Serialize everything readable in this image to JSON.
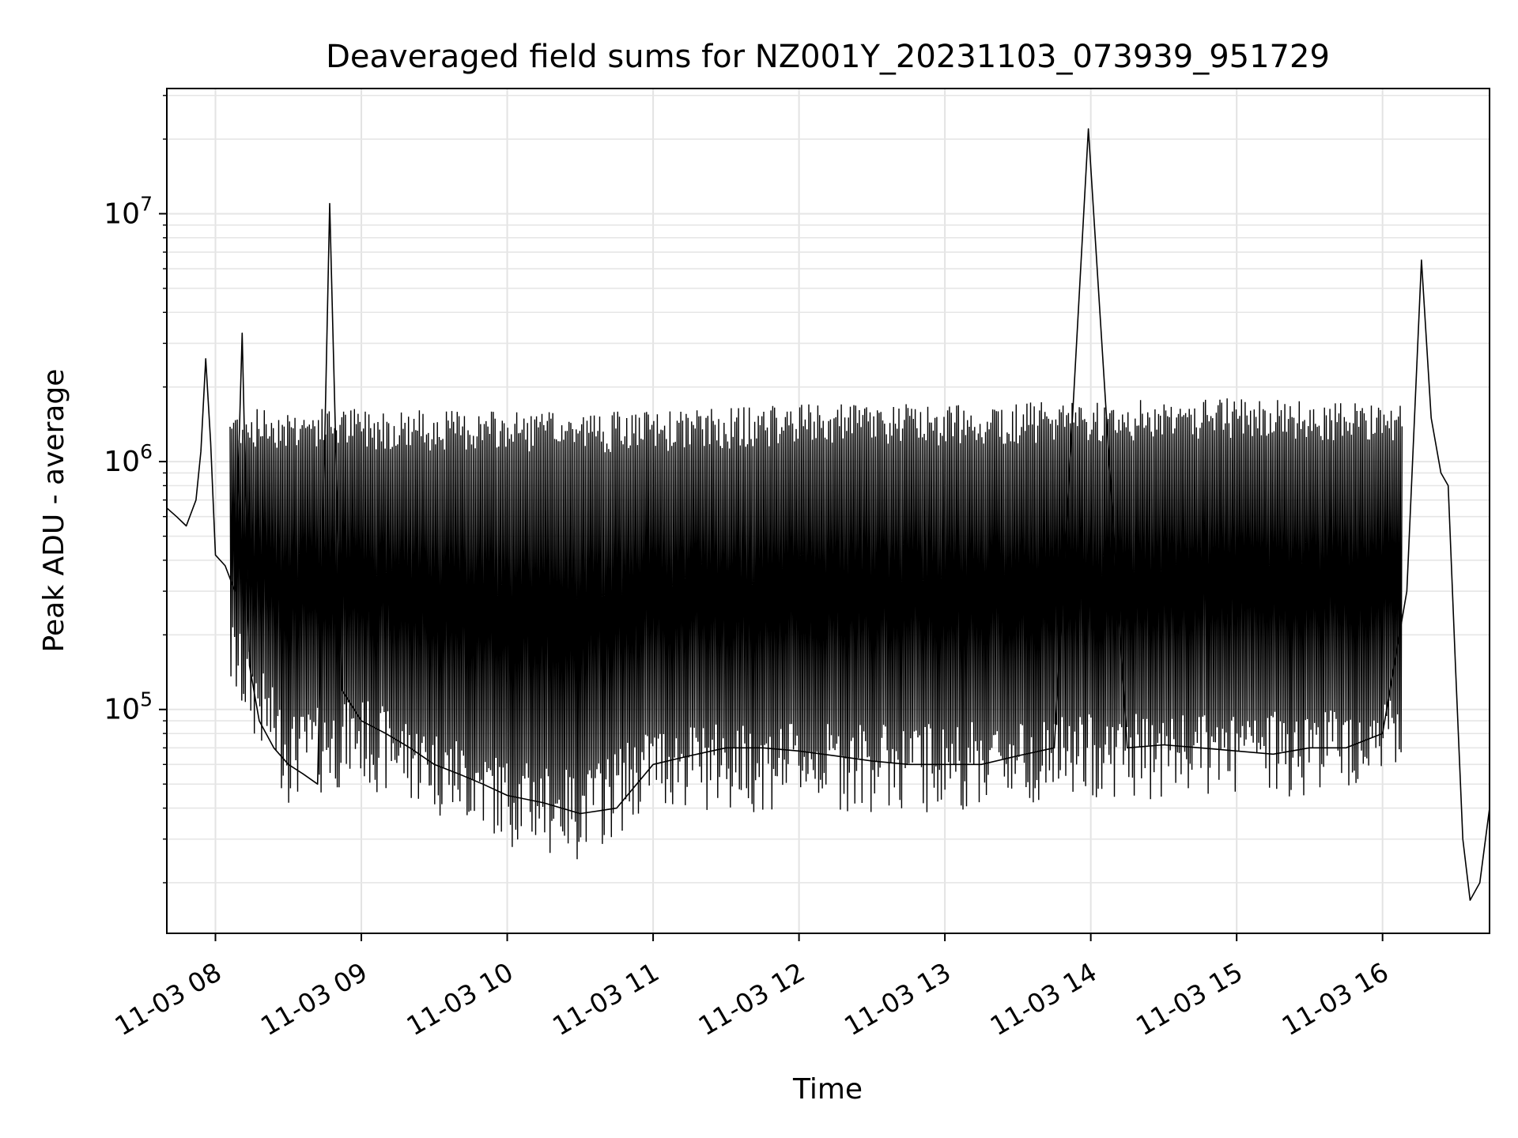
{
  "chart_data": {
    "type": "line",
    "title": "Deaveraged field sums for NZ001Y_20231103_073939_951729",
    "xlabel": "Time",
    "ylabel": "Peak ADU - average",
    "yscale": "log",
    "grid": true,
    "legend": "none",
    "xlim": [
      "2023-11-03 07:40",
      "2023-11-03 16:44"
    ],
    "ylim": [
      12500,
      32000000
    ],
    "x_ticks": [
      {
        "value": "2023-11-03 08:00",
        "label": "11-03 08"
      },
      {
        "value": "2023-11-03 09:00",
        "label": "11-03 09"
      },
      {
        "value": "2023-11-03 10:00",
        "label": "11-03 10"
      },
      {
        "value": "2023-11-03 11:00",
        "label": "11-03 11"
      },
      {
        "value": "2023-11-03 12:00",
        "label": "11-03 12"
      },
      {
        "value": "2023-11-03 13:00",
        "label": "11-03 13"
      },
      {
        "value": "2023-11-03 14:00",
        "label": "11-03 14"
      },
      {
        "value": "2023-11-03 15:00",
        "label": "11-03 15"
      },
      {
        "value": "2023-11-03 16:00",
        "label": "11-03 16"
      }
    ],
    "y_ticks": [
      {
        "value": 100000,
        "base": "10",
        "exp": "5"
      },
      {
        "value": 1000000,
        "base": "10",
        "exp": "6"
      },
      {
        "value": 10000000,
        "base": "10",
        "exp": "7"
      }
    ],
    "series": [
      {
        "color": "#000000",
        "x": [
          "2023-11-03 07:40",
          "2023-11-03 07:44",
          "2023-11-03 07:48",
          "2023-11-03 07:52",
          "2023-11-03 07:54",
          "2023-11-03 07:56",
          "2023-11-03 07:58",
          "2023-11-03 08:00",
          "2023-11-03 08:04",
          "2023-11-03 08:08",
          "2023-11-03 08:11",
          "2023-11-03 08:14",
          "2023-11-03 08:18",
          "2023-11-03 08:24",
          "2023-11-03 08:30",
          "2023-11-03 08:36",
          "2023-11-03 08:42",
          "2023-11-03 08:47",
          "2023-11-03 08:52",
          "2023-11-03 09:00",
          "2023-11-03 09:10",
          "2023-11-03 09:20",
          "2023-11-03 09:30",
          "2023-11-03 09:40",
          "2023-11-03 09:50",
          "2023-11-03 10:00",
          "2023-11-03 10:15",
          "2023-11-03 10:30",
          "2023-11-03 10:45",
          "2023-11-03 11:00",
          "2023-11-03 11:15",
          "2023-11-03 11:30",
          "2023-11-03 11:45",
          "2023-11-03 12:00",
          "2023-11-03 12:15",
          "2023-11-03 12:30",
          "2023-11-03 12:45",
          "2023-11-03 13:00",
          "2023-11-03 13:15",
          "2023-11-03 13:30",
          "2023-11-03 13:45",
          "2023-11-03 13:59",
          "2023-11-03 14:15",
          "2023-11-03 14:30",
          "2023-11-03 14:45",
          "2023-11-03 15:00",
          "2023-11-03 15:15",
          "2023-11-03 15:30",
          "2023-11-03 15:45",
          "2023-11-03 16:00",
          "2023-11-03 16:10",
          "2023-11-03 16:16",
          "2023-11-03 16:20",
          "2023-11-03 16:24",
          "2023-11-03 16:27",
          "2023-11-03 16:30",
          "2023-11-03 16:33",
          "2023-11-03 16:36",
          "2023-11-03 16:40",
          "2023-11-03 16:44"
        ],
        "y": [
          650000,
          600000,
          550000,
          700000,
          1100000,
          2600000,
          1200000,
          420000,
          380000,
          300000,
          3300000,
          150000,
          90000,
          70000,
          60000,
          55000,
          50000,
          11000000,
          120000,
          90000,
          80000,
          70000,
          60000,
          55000,
          50000,
          45000,
          42000,
          38000,
          40000,
          60000,
          65000,
          70000,
          70000,
          68000,
          65000,
          62000,
          60000,
          60000,
          60000,
          65000,
          70000,
          22000000,
          70000,
          72000,
          70000,
          68000,
          66000,
          70000,
          70000,
          80000,
          300000,
          6500000,
          1500000,
          900000,
          800000,
          150000,
          30000,
          17000,
          20000,
          40000
        ]
      },
      {
        "name_hint": "",
        "x_start": "2023-11-03 08:06",
        "x_end": "2023-11-03 16:08",
        "upper_envelope": [
          [
            "2023-11-03 08:06",
            1500000
          ],
          [
            "2023-11-03 09:00",
            1500000
          ],
          [
            "2023-11-03 10:00",
            1450000
          ],
          [
            "2023-11-03 11:00",
            1450000
          ],
          [
            "2023-11-03 12:00",
            1550000
          ],
          [
            "2023-11-03 13:00",
            1550000
          ],
          [
            "2023-11-03 14:00",
            1600000
          ],
          [
            "2023-11-03 15:00",
            1650000
          ],
          [
            "2023-11-03 16:08",
            1600000
          ]
        ],
        "lower_envelope": [
          [
            "2023-11-03 08:06",
            150000
          ],
          [
            "2023-11-03 08:30",
            60000
          ],
          [
            "2023-11-03 09:00",
            70000
          ],
          [
            "2023-11-03 10:00",
            40000
          ],
          [
            "2023-11-03 10:30",
            35000
          ],
          [
            "2023-11-03 11:00",
            55000
          ],
          [
            "2023-11-03 12:00",
            55000
          ],
          [
            "2023-11-03 13:00",
            55000
          ],
          [
            "2023-11-03 14:00",
            60000
          ],
          [
            "2023-11-03 15:00",
            60000
          ],
          [
            "2023-11-03 16:08",
            70000
          ]
        ]
      }
    ]
  }
}
